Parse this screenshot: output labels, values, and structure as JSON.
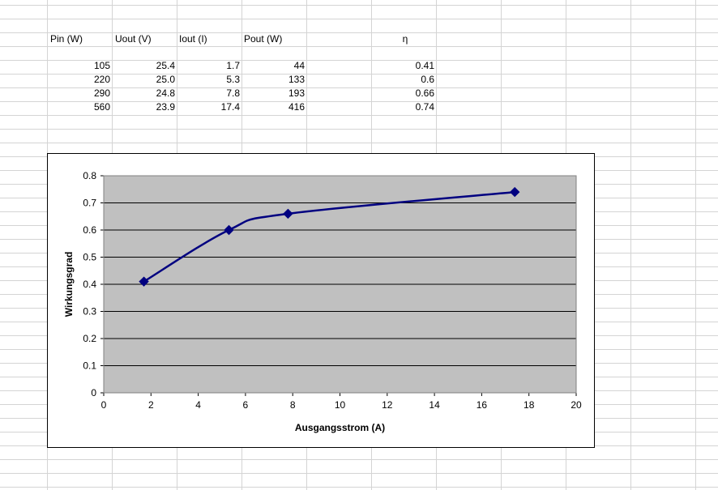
{
  "spreadsheet": {
    "headers": [
      "Pin (W)",
      "Uout (V)",
      "Iout (I)",
      "Pout (W)",
      "η"
    ],
    "rows": [
      [
        "105",
        "25.4",
        "1.7",
        "44",
        "0.41"
      ],
      [
        "220",
        "25.0",
        "5.3",
        "133",
        "0.6"
      ],
      [
        "290",
        "24.8",
        "7.8",
        "193",
        "0.66"
      ],
      [
        "560",
        "23.9",
        "17.4",
        "416",
        "0.74"
      ]
    ]
  },
  "chart_data": {
    "type": "line",
    "title": "",
    "xlabel": "Ausgangsstrom (A)",
    "ylabel": "Wirkungsgrad",
    "xlim": [
      0,
      20
    ],
    "ylim": [
      0,
      0.8
    ],
    "xticks": [
      "0",
      "2",
      "4",
      "6",
      "8",
      "10",
      "12",
      "14",
      "16",
      "18",
      "20"
    ],
    "yticks": [
      "0",
      "0.1",
      "0.2",
      "0.3",
      "0.4",
      "0.5",
      "0.6",
      "0.7",
      "0.8"
    ],
    "series": [
      {
        "x": [
          1.7,
          5.3,
          7.8,
          17.4
        ],
        "y": [
          0.41,
          0.6,
          0.66,
          0.74
        ]
      }
    ],
    "grid": true,
    "legend": "none",
    "colors": {
      "plot_background": "#c0c0c0",
      "line": "#000080",
      "gridline": "#000000"
    }
  }
}
